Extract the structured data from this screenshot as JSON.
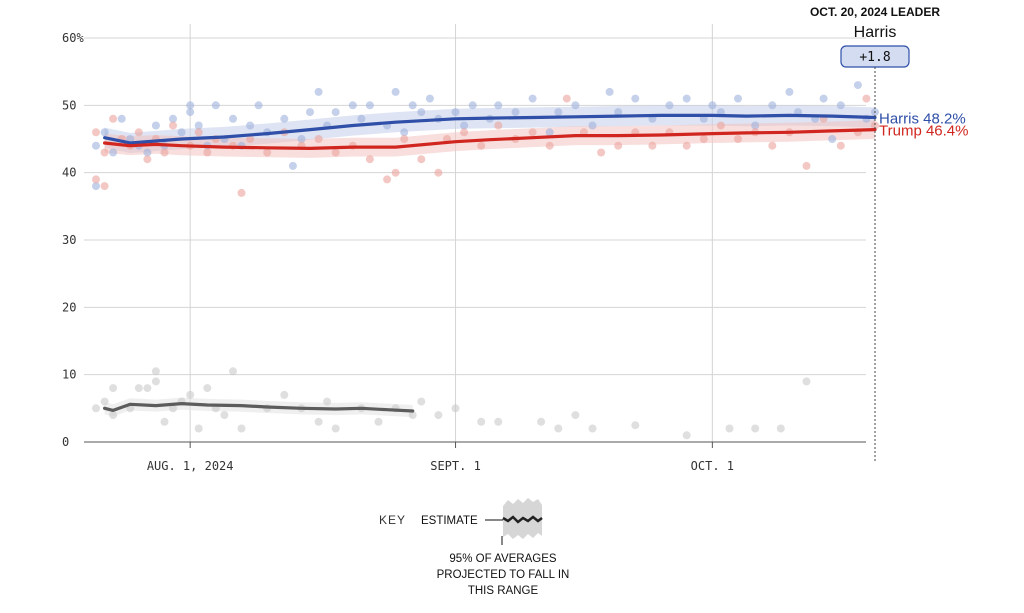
{
  "leader_box": {
    "heading": "OCT. 20, 2024 LEADER",
    "name": "Harris",
    "margin": "+1.8"
  },
  "key": {
    "label": "KEY",
    "estimate_label": "ESTIMATE",
    "range_note": [
      "95% OF AVERAGES",
      "PROJECTED TO FALL IN",
      "THIS RANGE"
    ]
  },
  "chart_data": {
    "type": "line",
    "x_axis": {
      "start": "2024-07-21",
      "end": "2024-10-20",
      "ticks": [
        {
          "date": "2024-08-01",
          "label": "AUG. 1, 2024"
        },
        {
          "date": "2024-09-01",
          "label": "SEPT. 1"
        },
        {
          "date": "2024-10-01",
          "label": "OCT. 1"
        }
      ]
    },
    "y_axis": {
      "ylim": [
        0,
        60
      ],
      "ticks": [
        {
          "value": 60,
          "label": "60%"
        },
        {
          "value": 50,
          "label": "50"
        },
        {
          "value": 40,
          "label": "40"
        },
        {
          "value": 30,
          "label": "30"
        },
        {
          "value": 20,
          "label": "20"
        },
        {
          "value": 10,
          "label": "10"
        },
        {
          "value": 0,
          "label": "0"
        }
      ]
    },
    "grid": true,
    "series": [
      {
        "name": "Harris",
        "end_label": "Harris 48.2%",
        "color": "#2f4fa8",
        "dot_color": "#9fb0dc",
        "band_color": "#c3cdea",
        "estimate": [
          [
            "2024-07-22",
            45.2
          ],
          [
            "2024-07-25",
            44.4
          ],
          [
            "2024-07-28",
            44.7
          ],
          [
            "2024-07-31",
            45.0
          ],
          [
            "2024-08-05",
            45.3
          ],
          [
            "2024-08-10",
            45.8
          ],
          [
            "2024-08-15",
            46.4
          ],
          [
            "2024-08-20",
            47.0
          ],
          [
            "2024-08-25",
            47.5
          ],
          [
            "2024-09-01",
            48.0
          ],
          [
            "2024-09-05",
            48.1
          ],
          [
            "2024-09-10",
            48.2
          ],
          [
            "2024-09-15",
            48.3
          ],
          [
            "2024-09-20",
            48.4
          ],
          [
            "2024-09-25",
            48.5
          ],
          [
            "2024-10-01",
            48.5
          ],
          [
            "2024-10-05",
            48.4
          ],
          [
            "2024-10-10",
            48.5
          ],
          [
            "2024-10-15",
            48.4
          ],
          [
            "2024-10-20",
            48.2
          ]
        ],
        "polls": [
          [
            "2024-07-21",
            44
          ],
          [
            "2024-07-21",
            38
          ],
          [
            "2024-07-22",
            46
          ],
          [
            "2024-07-23",
            43
          ],
          [
            "2024-07-24",
            48
          ],
          [
            "2024-07-25",
            45
          ],
          [
            "2024-07-26",
            44
          ],
          [
            "2024-07-27",
            43
          ],
          [
            "2024-07-28",
            47
          ],
          [
            "2024-07-29",
            44
          ],
          [
            "2024-07-30",
            48
          ],
          [
            "2024-07-31",
            46
          ],
          [
            "2024-08-01",
            50
          ],
          [
            "2024-08-01",
            49
          ],
          [
            "2024-08-02",
            47
          ],
          [
            "2024-08-03",
            44
          ],
          [
            "2024-08-04",
            50
          ],
          [
            "2024-08-05",
            45
          ],
          [
            "2024-08-06",
            48
          ],
          [
            "2024-08-07",
            44
          ],
          [
            "2024-08-08",
            47
          ],
          [
            "2024-08-09",
            50
          ],
          [
            "2024-08-10",
            46
          ],
          [
            "2024-08-12",
            48
          ],
          [
            "2024-08-13",
            41
          ],
          [
            "2024-08-14",
            45
          ],
          [
            "2024-08-15",
            49
          ],
          [
            "2024-08-16",
            52
          ],
          [
            "2024-08-17",
            47
          ],
          [
            "2024-08-18",
            49
          ],
          [
            "2024-08-20",
            50
          ],
          [
            "2024-08-21",
            48
          ],
          [
            "2024-08-22",
            50
          ],
          [
            "2024-08-24",
            47
          ],
          [
            "2024-08-25",
            52
          ],
          [
            "2024-08-26",
            46
          ],
          [
            "2024-08-27",
            50
          ],
          [
            "2024-08-28",
            49
          ],
          [
            "2024-08-29",
            51
          ],
          [
            "2024-08-30",
            48
          ],
          [
            "2024-09-01",
            49
          ],
          [
            "2024-09-02",
            47
          ],
          [
            "2024-09-03",
            50
          ],
          [
            "2024-09-05",
            48
          ],
          [
            "2024-09-06",
            50
          ],
          [
            "2024-09-08",
            49
          ],
          [
            "2024-09-10",
            51
          ],
          [
            "2024-09-12",
            46
          ],
          [
            "2024-09-13",
            49
          ],
          [
            "2024-09-15",
            50
          ],
          [
            "2024-09-17",
            47
          ],
          [
            "2024-09-19",
            52
          ],
          [
            "2024-09-20",
            49
          ],
          [
            "2024-09-22",
            51
          ],
          [
            "2024-09-24",
            48
          ],
          [
            "2024-09-26",
            50
          ],
          [
            "2024-09-28",
            51
          ],
          [
            "2024-09-30",
            48
          ],
          [
            "2024-10-01",
            50
          ],
          [
            "2024-10-02",
            49
          ],
          [
            "2024-10-04",
            51
          ],
          [
            "2024-10-06",
            47
          ],
          [
            "2024-10-08",
            50
          ],
          [
            "2024-10-10",
            52
          ],
          [
            "2024-10-11",
            49
          ],
          [
            "2024-10-13",
            48
          ],
          [
            "2024-10-14",
            51
          ],
          [
            "2024-10-15",
            45
          ],
          [
            "2024-10-16",
            50
          ],
          [
            "2024-10-18",
            53
          ],
          [
            "2024-10-19",
            48
          ],
          [
            "2024-10-20",
            49
          ]
        ]
      },
      {
        "name": "Trump",
        "end_label": "Trump 46.4%",
        "color": "#d1261f",
        "dot_color": "#eba39d",
        "band_color": "#f3c3bf",
        "estimate": [
          [
            "2024-07-22",
            44.4
          ],
          [
            "2024-07-25",
            44.0
          ],
          [
            "2024-07-28",
            44.2
          ],
          [
            "2024-07-31",
            44.0
          ],
          [
            "2024-08-05",
            43.8
          ],
          [
            "2024-08-10",
            43.7
          ],
          [
            "2024-08-15",
            43.6
          ],
          [
            "2024-08-20",
            43.8
          ],
          [
            "2024-08-25",
            43.8
          ],
          [
            "2024-09-01",
            44.6
          ],
          [
            "2024-09-05",
            44.9
          ],
          [
            "2024-09-10",
            45.2
          ],
          [
            "2024-09-15",
            45.5
          ],
          [
            "2024-09-20",
            45.5
          ],
          [
            "2024-09-25",
            45.6
          ],
          [
            "2024-10-01",
            45.8
          ],
          [
            "2024-10-05",
            45.9
          ],
          [
            "2024-10-10",
            46.0
          ],
          [
            "2024-10-15",
            46.2
          ],
          [
            "2024-10-20",
            46.4
          ]
        ],
        "polls": [
          [
            "2024-07-21",
            46
          ],
          [
            "2024-07-21",
            39
          ],
          [
            "2024-07-22",
            43
          ],
          [
            "2024-07-22",
            38
          ],
          [
            "2024-07-23",
            48
          ],
          [
            "2024-07-24",
            45
          ],
          [
            "2024-07-25",
            44
          ],
          [
            "2024-07-26",
            46
          ],
          [
            "2024-07-27",
            42
          ],
          [
            "2024-07-28",
            45
          ],
          [
            "2024-07-29",
            43
          ],
          [
            "2024-07-30",
            47
          ],
          [
            "2024-08-01",
            44
          ],
          [
            "2024-08-02",
            46
          ],
          [
            "2024-08-03",
            43
          ],
          [
            "2024-08-04",
            45
          ],
          [
            "2024-08-06",
            44
          ],
          [
            "2024-08-07",
            37
          ],
          [
            "2024-08-08",
            45
          ],
          [
            "2024-08-10",
            43
          ],
          [
            "2024-08-12",
            46
          ],
          [
            "2024-08-14",
            44
          ],
          [
            "2024-08-16",
            45
          ],
          [
            "2024-08-18",
            43
          ],
          [
            "2024-08-20",
            44
          ],
          [
            "2024-08-22",
            42
          ],
          [
            "2024-08-24",
            39
          ],
          [
            "2024-08-25",
            40
          ],
          [
            "2024-08-26",
            45
          ],
          [
            "2024-08-28",
            42
          ],
          [
            "2024-08-30",
            40
          ],
          [
            "2024-08-31",
            45
          ],
          [
            "2024-09-02",
            46
          ],
          [
            "2024-09-04",
            44
          ],
          [
            "2024-09-06",
            47
          ],
          [
            "2024-09-08",
            45
          ],
          [
            "2024-09-10",
            46
          ],
          [
            "2024-09-12",
            44
          ],
          [
            "2024-09-14",
            51
          ],
          [
            "2024-09-16",
            46
          ],
          [
            "2024-09-18",
            43
          ],
          [
            "2024-09-20",
            44
          ],
          [
            "2024-09-22",
            46
          ],
          [
            "2024-09-24",
            44
          ],
          [
            "2024-09-26",
            46
          ],
          [
            "2024-09-28",
            44
          ],
          [
            "2024-09-30",
            45
          ],
          [
            "2024-10-02",
            47
          ],
          [
            "2024-10-04",
            45
          ],
          [
            "2024-10-06",
            46
          ],
          [
            "2024-10-08",
            44
          ],
          [
            "2024-10-10",
            46
          ],
          [
            "2024-10-12",
            41
          ],
          [
            "2024-10-14",
            48
          ],
          [
            "2024-10-16",
            44
          ],
          [
            "2024-10-18",
            46
          ],
          [
            "2024-10-19",
            51
          ],
          [
            "2024-10-20",
            47
          ]
        ]
      },
      {
        "name": "",
        "color": "#5c5c5c",
        "dot_color": "#c9c9c9",
        "band_color": "#e2e2e2",
        "estimate": [
          [
            "2024-07-22",
            5.0
          ],
          [
            "2024-07-23",
            4.7
          ],
          [
            "2024-07-25",
            5.6
          ],
          [
            "2024-07-28",
            5.4
          ],
          [
            "2024-07-31",
            5.7
          ],
          [
            "2024-08-03",
            5.5
          ],
          [
            "2024-08-07",
            5.4
          ],
          [
            "2024-08-10",
            5.2
          ],
          [
            "2024-08-14",
            5.0
          ],
          [
            "2024-08-18",
            4.9
          ],
          [
            "2024-08-21",
            5.0
          ],
          [
            "2024-08-24",
            4.8
          ],
          [
            "2024-08-27",
            4.6
          ]
        ],
        "polls": [
          [
            "2024-07-21",
            5
          ],
          [
            "2024-07-22",
            6
          ],
          [
            "2024-07-23",
            4
          ],
          [
            "2024-07-23",
            8
          ],
          [
            "2024-07-25",
            5
          ],
          [
            "2024-07-26",
            8
          ],
          [
            "2024-07-27",
            8
          ],
          [
            "2024-07-28",
            10.5
          ],
          [
            "2024-07-28",
            9
          ],
          [
            "2024-07-29",
            3
          ],
          [
            "2024-07-30",
            5
          ],
          [
            "2024-07-31",
            6
          ],
          [
            "2024-08-01",
            7
          ],
          [
            "2024-08-02",
            2
          ],
          [
            "2024-08-03",
            8
          ],
          [
            "2024-08-04",
            5
          ],
          [
            "2024-08-05",
            4
          ],
          [
            "2024-08-06",
            10.5
          ],
          [
            "2024-08-07",
            2
          ],
          [
            "2024-08-10",
            5
          ],
          [
            "2024-08-12",
            7
          ],
          [
            "2024-08-14",
            5
          ],
          [
            "2024-08-16",
            3
          ],
          [
            "2024-08-17",
            6
          ],
          [
            "2024-08-18",
            2
          ],
          [
            "2024-08-21",
            5
          ],
          [
            "2024-08-23",
            3
          ],
          [
            "2024-08-25",
            5
          ],
          [
            "2024-08-27",
            4
          ],
          [
            "2024-08-28",
            6
          ],
          [
            "2024-08-30",
            4
          ],
          [
            "2024-09-01",
            5
          ],
          [
            "2024-09-04",
            3
          ],
          [
            "2024-09-06",
            3
          ],
          [
            "2024-09-11",
            3
          ],
          [
            "2024-09-13",
            2
          ],
          [
            "2024-09-15",
            4
          ],
          [
            "2024-09-17",
            2
          ],
          [
            "2024-09-22",
            2.5
          ],
          [
            "2024-09-28",
            1
          ],
          [
            "2024-10-03",
            2
          ],
          [
            "2024-10-06",
            2
          ],
          [
            "2024-10-09",
            2
          ],
          [
            "2024-10-12",
            9
          ]
        ]
      }
    ]
  }
}
